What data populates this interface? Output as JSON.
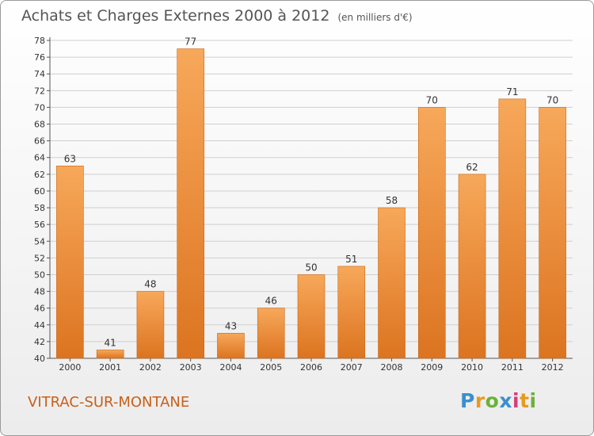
{
  "title": "Achats et Charges Externes 2000 à 2012",
  "subtitle": "(en milliers d'€)",
  "commune": "VITRAC-SUR-MONTANE",
  "logo": {
    "text": "Proxiti",
    "colors": [
      "#3a8fd0",
      "#e89a20",
      "#6ab23a",
      "#3a8fd0",
      "#d83a7a",
      "#e89a20",
      "#6ab23a"
    ]
  },
  "colors": {
    "bar_top": "#f7a85a",
    "bar_bottom": "#dc7420",
    "bar_stroke": "#c8681a",
    "commune_text": "#c8601a"
  },
  "chart_data": {
    "type": "bar",
    "categories": [
      "2000",
      "2001",
      "2002",
      "2003",
      "2004",
      "2005",
      "2006",
      "2007",
      "2008",
      "2009",
      "2010",
      "2011",
      "2012"
    ],
    "values": [
      63,
      41,
      48,
      77,
      43,
      46,
      50,
      51,
      58,
      70,
      62,
      71,
      70
    ],
    "ylim": [
      40,
      78
    ],
    "yticks": [
      40,
      42,
      44,
      46,
      48,
      50,
      52,
      54,
      56,
      58,
      60,
      62,
      64,
      66,
      68,
      70,
      72,
      74,
      76,
      78
    ],
    "grid": true,
    "xlabel": "",
    "ylabel": ""
  }
}
